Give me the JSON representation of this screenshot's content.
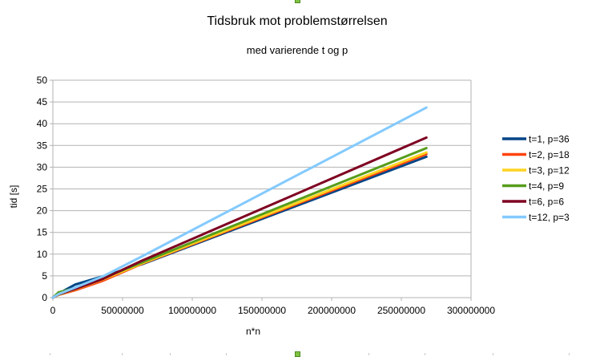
{
  "chart_data": {
    "type": "line",
    "title": "Tidsbruk mot problemstørrelsen",
    "subtitle": "med varierende t og p",
    "xlabel": "n*n",
    "ylabel": "tid [s]",
    "xlim": [
      0,
      300000000
    ],
    "ylim": [
      0,
      50
    ],
    "x_ticks": [
      0,
      50000000,
      100000000,
      150000000,
      200000000,
      250000000,
      300000000
    ],
    "x_tick_labels": [
      "0",
      "50000000",
      "100000000",
      "150000000",
      "200000000",
      "250000000",
      "300000000"
    ],
    "y_ticks": [
      0,
      5,
      10,
      15,
      20,
      25,
      30,
      35,
      40,
      45,
      50
    ],
    "y_tick_labels": [
      "0",
      "5",
      "10",
      "15",
      "20",
      "25",
      "30",
      "35",
      "40",
      "45",
      "50"
    ],
    "grid": "horizontal",
    "legend_position": "right",
    "series": [
      {
        "name": "t=1, p=36",
        "color": "#004586",
        "points": [
          [
            0,
            0
          ],
          [
            4000000,
            0.9
          ],
          [
            16000000,
            3.0
          ],
          [
            36000000,
            4.9
          ],
          [
            64000000,
            7.7
          ],
          [
            268000000,
            32.4
          ]
        ]
      },
      {
        "name": "t=2, p=18",
        "color": "#ff420e",
        "points": [
          [
            0,
            0
          ],
          [
            4000000,
            0.6
          ],
          [
            16000000,
            1.7
          ],
          [
            36000000,
            3.9
          ],
          [
            64000000,
            7.8
          ],
          [
            268000000,
            33.0
          ]
        ]
      },
      {
        "name": "t=3, p=12",
        "color": "#ffd320",
        "points": [
          [
            0,
            0
          ],
          [
            4000000,
            0.6
          ],
          [
            16000000,
            1.9
          ],
          [
            36000000,
            4.2
          ],
          [
            64000000,
            7.9
          ],
          [
            268000000,
            33.4
          ]
        ]
      },
      {
        "name": "t=4, p=9",
        "color": "#579d1c",
        "points": [
          [
            0,
            0
          ],
          [
            4000000,
            1.2
          ],
          [
            16000000,
            2.2
          ],
          [
            36000000,
            4.5
          ],
          [
            64000000,
            8.1
          ],
          [
            268000000,
            34.4
          ]
        ]
      },
      {
        "name": "t=6, p=6",
        "color": "#7e0021",
        "points": [
          [
            0,
            0
          ],
          [
            4000000,
            0.7
          ],
          [
            16000000,
            2.0
          ],
          [
            36000000,
            4.3
          ],
          [
            64000000,
            8.5
          ],
          [
            268000000,
            36.8
          ]
        ]
      },
      {
        "name": "t=12, p=3",
        "color": "#83caff",
        "points": [
          [
            0,
            0
          ],
          [
            4000000,
            0.8
          ],
          [
            16000000,
            2.3
          ],
          [
            36000000,
            4.9
          ],
          [
            64000000,
            9.5
          ],
          [
            268000000,
            43.7
          ]
        ]
      }
    ]
  }
}
